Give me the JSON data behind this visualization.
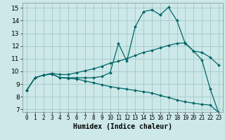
{
  "bg_color": "#cce8e8",
  "grid_color": "#aacccc",
  "line_color": "#006666",
  "marker_color": "#006666",
  "xlabel": "Humidex (Indice chaleur)",
  "xlim": [
    -0.5,
    23.5
  ],
  "ylim": [
    6.8,
    15.4
  ],
  "xticks": [
    0,
    1,
    2,
    3,
    4,
    5,
    6,
    7,
    8,
    9,
    10,
    11,
    12,
    13,
    14,
    15,
    16,
    17,
    18,
    19,
    20,
    21,
    22,
    23
  ],
  "yticks": [
    7,
    8,
    9,
    10,
    11,
    12,
    13,
    14,
    15
  ],
  "curve1_x": [
    0,
    1,
    2,
    3,
    4,
    5,
    6,
    7,
    8,
    9,
    10,
    11,
    12,
    13,
    14,
    15,
    16,
    17,
    18,
    19,
    20,
    21,
    22,
    23
  ],
  "curve1_y": [
    8.5,
    9.5,
    9.7,
    9.8,
    9.5,
    9.5,
    9.5,
    9.5,
    9.5,
    9.6,
    9.9,
    12.2,
    10.8,
    13.5,
    14.7,
    14.85,
    14.45,
    15.05,
    14.0,
    12.2,
    11.6,
    10.9,
    8.6,
    6.75
  ],
  "curve2_x": [
    0,
    1,
    2,
    3,
    4,
    5,
    6,
    7,
    8,
    9,
    10,
    11,
    12,
    13,
    14,
    15,
    16,
    17,
    18,
    19,
    20,
    21,
    22,
    23
  ],
  "curve2_y": [
    8.5,
    9.5,
    9.7,
    9.85,
    9.75,
    9.75,
    9.9,
    10.05,
    10.2,
    10.4,
    10.65,
    10.8,
    11.0,
    11.25,
    11.5,
    11.65,
    11.85,
    12.05,
    12.2,
    12.25,
    11.6,
    11.5,
    11.1,
    10.5
  ],
  "curve3_x": [
    0,
    1,
    2,
    3,
    4,
    5,
    6,
    7,
    8,
    9,
    10,
    11,
    12,
    13,
    14,
    15,
    16,
    17,
    18,
    19,
    20,
    21,
    22,
    23
  ],
  "curve3_y": [
    8.5,
    9.5,
    9.7,
    9.8,
    9.5,
    9.45,
    9.4,
    9.25,
    9.1,
    8.95,
    8.8,
    8.7,
    8.6,
    8.5,
    8.4,
    8.3,
    8.1,
    7.95,
    7.75,
    7.6,
    7.5,
    7.4,
    7.35,
    6.75
  ]
}
